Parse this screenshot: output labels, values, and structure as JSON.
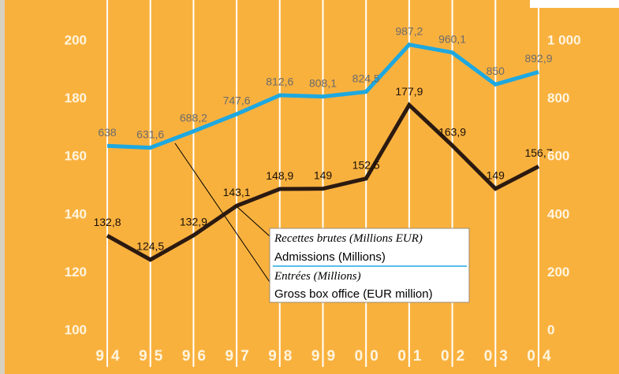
{
  "chart_data": {
    "type": "line",
    "categories": [
      "94",
      "95",
      "96",
      "97",
      "98",
      "99",
      "00",
      "01",
      "02",
      "03",
      "04"
    ],
    "series": [
      {
        "name": "Admissions (Millions)",
        "name_alt": "Entrées (Millions)",
        "color": "#1ea8e0",
        "axis": "y2",
        "values": [
          638,
          631.6,
          688.2,
          747.6,
          812.6,
          808.1,
          824.5,
          987.2,
          960.1,
          850,
          892.9
        ],
        "value_labels": [
          "638",
          "631,6",
          "688,2",
          "747,6",
          "812,6",
          "808,1",
          "824,5",
          "987,2",
          "960,1",
          "850",
          "892,9"
        ]
      },
      {
        "name": "Gross box office (EUR million)",
        "name_alt": "Recettes brutes (Millions EUR)",
        "color": "#2b1a10",
        "axis": "y",
        "values": [
          132.8,
          124.5,
          132.9,
          143.1,
          148.9,
          149,
          152.5,
          177.9,
          163.9,
          149,
          156.7
        ],
        "value_labels": [
          "132,8",
          "124,5",
          "132,9",
          "143,1",
          "148,9",
          "149",
          "152,5",
          "177,9",
          "163,9",
          "149",
          "156,7"
        ]
      }
    ],
    "ylim": [
      100,
      200
    ],
    "yticks": [
      100,
      120,
      140,
      160,
      180,
      200
    ],
    "y2lim": [
      0,
      1000
    ],
    "y2ticks": [
      0,
      200,
      400,
      600,
      800,
      {
        "value": 1000,
        "label": "1 000"
      }
    ],
    "grid": true
  }
}
